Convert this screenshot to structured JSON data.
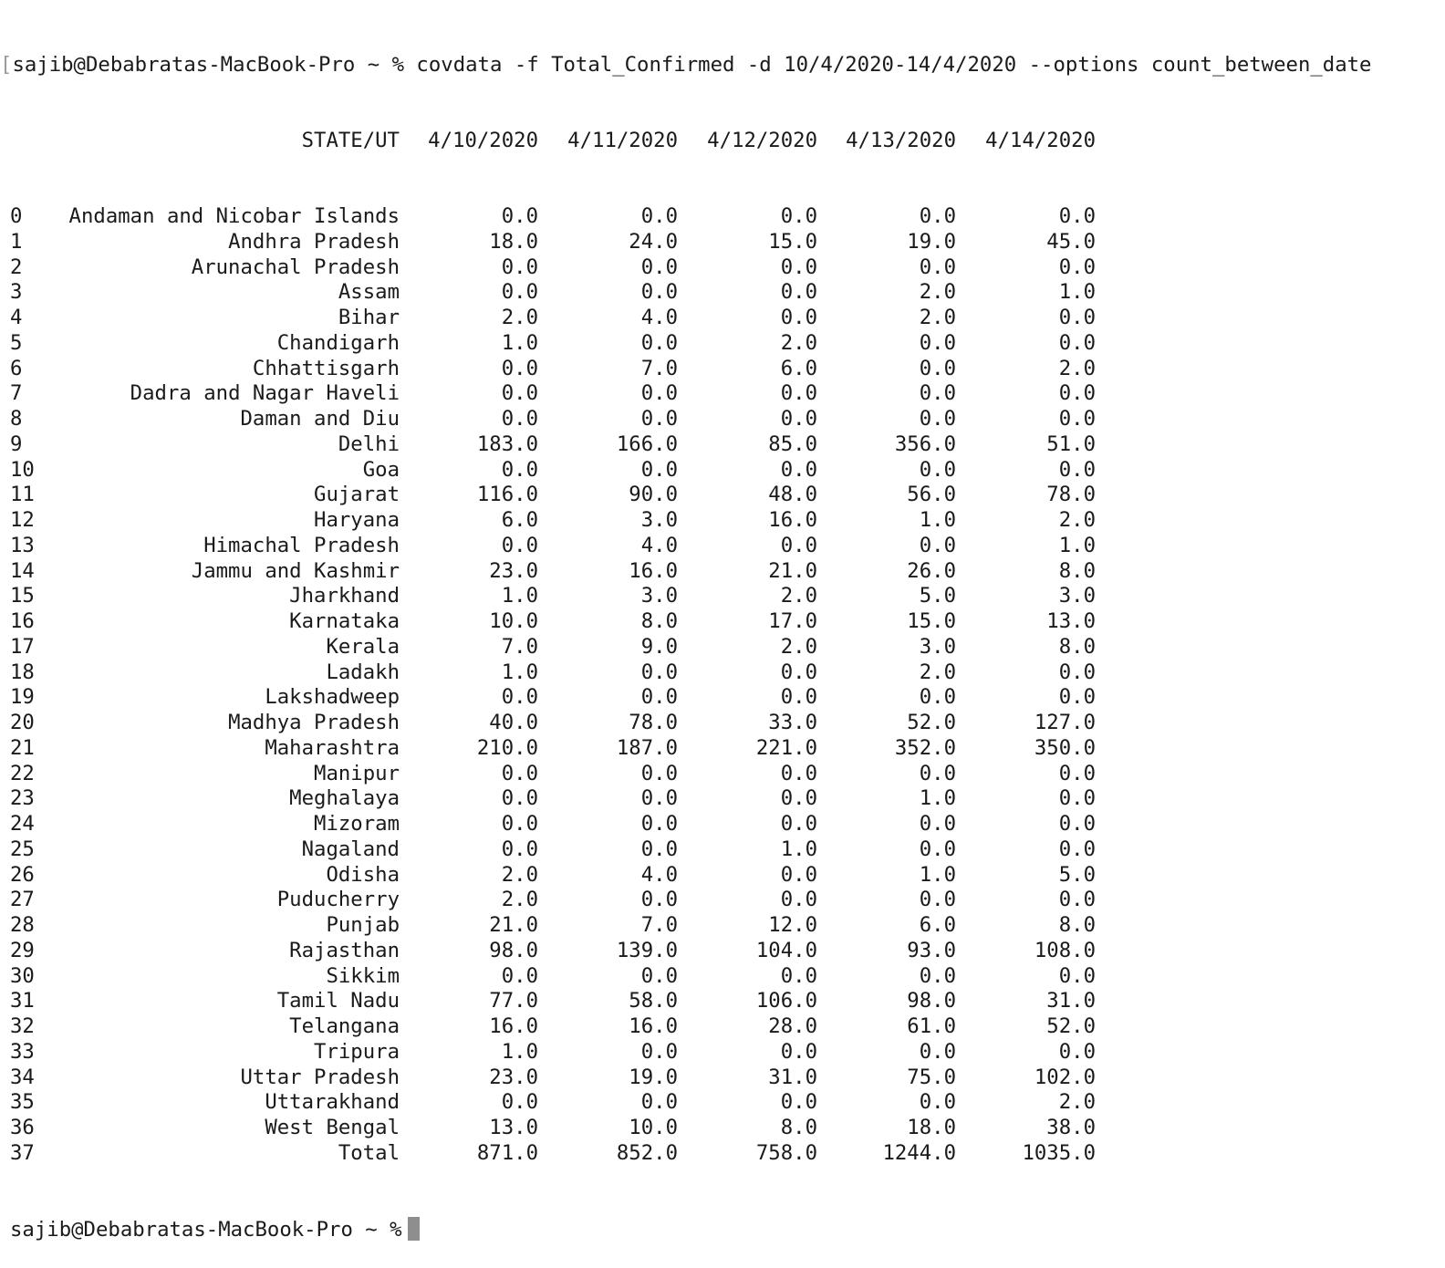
{
  "terminal": {
    "command_bracket": "[",
    "command_line": "sajib@Debabratas-MacBook-Pro ~ % covdata -f Total_Confirmed -d 10/4/2020-14/4/2020 --options count_between_date",
    "final_prompt": "sajib@Debabratas-MacBook-Pro ~ %",
    "cursor_icon": "block-cursor-icon"
  },
  "table": {
    "headers": [
      "STATE/UT",
      "4/10/2020",
      "4/11/2020",
      "4/12/2020",
      "4/13/2020",
      "4/14/2020"
    ],
    "rows": [
      {
        "index": "0",
        "state": "Andaman and Nicobar Islands",
        "values": [
          "0.0",
          "0.0",
          "0.0",
          "0.0",
          "0.0"
        ]
      },
      {
        "index": "1",
        "state": "Andhra Pradesh",
        "values": [
          "18.0",
          "24.0",
          "15.0",
          "19.0",
          "45.0"
        ]
      },
      {
        "index": "2",
        "state": "Arunachal Pradesh",
        "values": [
          "0.0",
          "0.0",
          "0.0",
          "0.0",
          "0.0"
        ]
      },
      {
        "index": "3",
        "state": "Assam",
        "values": [
          "0.0",
          "0.0",
          "0.0",
          "2.0",
          "1.0"
        ]
      },
      {
        "index": "4",
        "state": "Bihar",
        "values": [
          "2.0",
          "4.0",
          "0.0",
          "2.0",
          "0.0"
        ]
      },
      {
        "index": "5",
        "state": "Chandigarh",
        "values": [
          "1.0",
          "0.0",
          "2.0",
          "0.0",
          "0.0"
        ]
      },
      {
        "index": "6",
        "state": "Chhattisgarh",
        "values": [
          "0.0",
          "7.0",
          "6.0",
          "0.0",
          "2.0"
        ]
      },
      {
        "index": "7",
        "state": "Dadra and Nagar Haveli",
        "values": [
          "0.0",
          "0.0",
          "0.0",
          "0.0",
          "0.0"
        ]
      },
      {
        "index": "8",
        "state": "Daman and Diu",
        "values": [
          "0.0",
          "0.0",
          "0.0",
          "0.0",
          "0.0"
        ]
      },
      {
        "index": "9",
        "state": "Delhi",
        "values": [
          "183.0",
          "166.0",
          "85.0",
          "356.0",
          "51.0"
        ]
      },
      {
        "index": "10",
        "state": "Goa",
        "values": [
          "0.0",
          "0.0",
          "0.0",
          "0.0",
          "0.0"
        ]
      },
      {
        "index": "11",
        "state": "Gujarat",
        "values": [
          "116.0",
          "90.0",
          "48.0",
          "56.0",
          "78.0"
        ]
      },
      {
        "index": "12",
        "state": "Haryana",
        "values": [
          "6.0",
          "3.0",
          "16.0",
          "1.0",
          "2.0"
        ]
      },
      {
        "index": "13",
        "state": "Himachal Pradesh",
        "values": [
          "0.0",
          "4.0",
          "0.0",
          "0.0",
          "1.0"
        ]
      },
      {
        "index": "14",
        "state": "Jammu and Kashmir",
        "values": [
          "23.0",
          "16.0",
          "21.0",
          "26.0",
          "8.0"
        ]
      },
      {
        "index": "15",
        "state": "Jharkhand",
        "values": [
          "1.0",
          "3.0",
          "2.0",
          "5.0",
          "3.0"
        ]
      },
      {
        "index": "16",
        "state": "Karnataka",
        "values": [
          "10.0",
          "8.0",
          "17.0",
          "15.0",
          "13.0"
        ]
      },
      {
        "index": "17",
        "state": "Kerala",
        "values": [
          "7.0",
          "9.0",
          "2.0",
          "3.0",
          "8.0"
        ]
      },
      {
        "index": "18",
        "state": "Ladakh",
        "values": [
          "1.0",
          "0.0",
          "0.0",
          "2.0",
          "0.0"
        ]
      },
      {
        "index": "19",
        "state": "Lakshadweep",
        "values": [
          "0.0",
          "0.0",
          "0.0",
          "0.0",
          "0.0"
        ]
      },
      {
        "index": "20",
        "state": "Madhya Pradesh",
        "values": [
          "40.0",
          "78.0",
          "33.0",
          "52.0",
          "127.0"
        ]
      },
      {
        "index": "21",
        "state": "Maharashtra",
        "values": [
          "210.0",
          "187.0",
          "221.0",
          "352.0",
          "350.0"
        ]
      },
      {
        "index": "22",
        "state": "Manipur",
        "values": [
          "0.0",
          "0.0",
          "0.0",
          "0.0",
          "0.0"
        ]
      },
      {
        "index": "23",
        "state": "Meghalaya",
        "values": [
          "0.0",
          "0.0",
          "0.0",
          "1.0",
          "0.0"
        ]
      },
      {
        "index": "24",
        "state": "Mizoram",
        "values": [
          "0.0",
          "0.0",
          "0.0",
          "0.0",
          "0.0"
        ]
      },
      {
        "index": "25",
        "state": "Nagaland",
        "values": [
          "0.0",
          "0.0",
          "1.0",
          "0.0",
          "0.0"
        ]
      },
      {
        "index": "26",
        "state": "Odisha",
        "values": [
          "2.0",
          "4.0",
          "0.0",
          "1.0",
          "5.0"
        ]
      },
      {
        "index": "27",
        "state": "Puducherry",
        "values": [
          "2.0",
          "0.0",
          "0.0",
          "0.0",
          "0.0"
        ]
      },
      {
        "index": "28",
        "state": "Punjab",
        "values": [
          "21.0",
          "7.0",
          "12.0",
          "6.0",
          "8.0"
        ]
      },
      {
        "index": "29",
        "state": "Rajasthan",
        "values": [
          "98.0",
          "139.0",
          "104.0",
          "93.0",
          "108.0"
        ]
      },
      {
        "index": "30",
        "state": "Sikkim",
        "values": [
          "0.0",
          "0.0",
          "0.0",
          "0.0",
          "0.0"
        ]
      },
      {
        "index": "31",
        "state": "Tamil Nadu",
        "values": [
          "77.0",
          "58.0",
          "106.0",
          "98.0",
          "31.0"
        ]
      },
      {
        "index": "32",
        "state": "Telangana",
        "values": [
          "16.0",
          "16.0",
          "28.0",
          "61.0",
          "52.0"
        ]
      },
      {
        "index": "33",
        "state": "Tripura",
        "values": [
          "1.0",
          "0.0",
          "0.0",
          "0.0",
          "0.0"
        ]
      },
      {
        "index": "34",
        "state": "Uttar Pradesh",
        "values": [
          "23.0",
          "19.0",
          "31.0",
          "75.0",
          "102.0"
        ]
      },
      {
        "index": "35",
        "state": "Uttarakhand",
        "values": [
          "0.0",
          "0.0",
          "0.0",
          "0.0",
          "2.0"
        ]
      },
      {
        "index": "36",
        "state": "West Bengal",
        "values": [
          "13.0",
          "10.0",
          "8.0",
          "18.0",
          "38.0"
        ]
      },
      {
        "index": "37",
        "state": "Total",
        "values": [
          "871.0",
          "852.0",
          "758.0",
          "1244.0",
          "1035.0"
        ]
      }
    ]
  }
}
